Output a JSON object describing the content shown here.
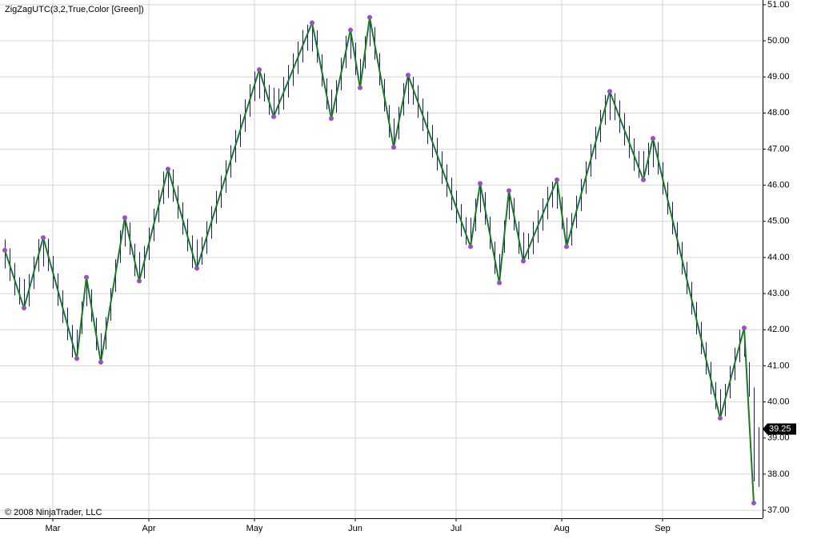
{
  "chart_data": {
    "type": "ohlc",
    "title": "ZigZagUTC(3,2,True,Color [Green])",
    "credit": "© 2008 NinjaTrader, LLC",
    "categories": [
      null,
      null,
      null,
      null,
      null,
      null,
      null,
      null,
      null,
      null,
      "Mar",
      null,
      null,
      null,
      null,
      null,
      null,
      null,
      null,
      null,
      null,
      null,
      null,
      null,
      null,
      null,
      null,
      null,
      null,
      null,
      "Apr",
      null,
      null,
      null,
      null,
      null,
      null,
      null,
      null,
      null,
      null,
      null,
      null,
      null,
      null,
      null,
      null,
      null,
      null,
      null,
      null,
      null,
      "May",
      null,
      null,
      null,
      null,
      null,
      null,
      null,
      null,
      null,
      null,
      null,
      null,
      null,
      null,
      null,
      null,
      null,
      null,
      null,
      null,
      "Jun",
      null,
      null,
      null,
      null,
      null,
      null,
      null,
      null,
      null,
      null,
      null,
      null,
      null,
      null,
      null,
      null,
      null,
      null,
      null,
      null,
      "Jul",
      null,
      null,
      null,
      null,
      null,
      null,
      null,
      null,
      null,
      null,
      null,
      null,
      null,
      null,
      null,
      null,
      null,
      null,
      null,
      null,
      null,
      "Aug",
      null,
      null,
      null,
      null,
      null,
      null,
      null,
      null,
      null,
      null,
      null,
      null,
      null,
      null,
      null,
      null,
      null,
      null,
      null,
      null,
      "Sep",
      null,
      null,
      null,
      null,
      null,
      null,
      null,
      null,
      null,
      null,
      null,
      null,
      null,
      null,
      null,
      null,
      null,
      null,
      null,
      null
    ],
    "bars": {
      "color": "#1c1c5c",
      "high": [
        44.5,
        44.25,
        43.85,
        43.45,
        43.4,
        43.54,
        44.03,
        44.51,
        44.55,
        44.52,
        44.04,
        43.56,
        43.09,
        42.61,
        42.13,
        42.0,
        42.78,
        43.45,
        43.12,
        42.33,
        41.9,
        42.35,
        43.15,
        43.95,
        44.75,
        45.1,
        44.97,
        44.38,
        44.15,
        44.32,
        44.83,
        45.35,
        45.87,
        46.38,
        46.45,
        46.44,
        45.98,
        45.53,
        45.07,
        44.61,
        44.5,
        44.57,
        45.0,
        45.42,
        45.84,
        46.27,
        46.69,
        47.11,
        47.53,
        47.96,
        48.38,
        48.8,
        49.15,
        49.2,
        49.1,
        48.78,
        48.7,
        48.68,
        49.0,
        49.33,
        49.65,
        49.98,
        50.3,
        50.45,
        50.5,
        50.29,
        49.63,
        48.96,
        48.65,
        48.91,
        49.53,
        50.14,
        50.3,
        49.95,
        49.5,
        50.13,
        50.65,
        50.38,
        49.66,
        48.94,
        48.22,
        47.85,
        48.17,
        48.83,
        49.05,
        49.0,
        48.77,
        48.4,
        48.04,
        47.67,
        47.31,
        46.94,
        46.58,
        46.21,
        45.85,
        45.48,
        45.12,
        45.1,
        45.63,
        46.05,
        45.81,
        45.13,
        44.44,
        44.1,
        45.03,
        45.85,
        45.65,
        45.0,
        44.7,
        44.67,
        44.99,
        45.31,
        45.64,
        45.96,
        46.1,
        46.15,
        45.68,
        45.1,
        45.23,
        45.71,
        46.18,
        46.66,
        47.14,
        47.62,
        48.09,
        48.5,
        48.6,
        48.55,
        48.35,
        48.0,
        47.65,
        47.3,
        46.95,
        46.95,
        47.18,
        47.3,
        47.2,
        46.64,
        46.09,
        45.54,
        44.98,
        44.43,
        43.88,
        43.32,
        42.77,
        42.22,
        41.66,
        41.11,
        40.55,
        40.35,
        40.5,
        41.0,
        41.5,
        42.0,
        42.05,
        41.1,
        40.4,
        39.3
      ],
      "low": [
        43.7,
        43.35,
        42.95,
        42.7,
        42.6,
        42.64,
        43.13,
        43.61,
        43.75,
        43.62,
        43.14,
        42.66,
        42.19,
        41.71,
        41.23,
        41.2,
        41.88,
        42.65,
        42.22,
        41.43,
        41.1,
        41.45,
        42.25,
        43.05,
        43.85,
        44.3,
        44.07,
        43.48,
        43.35,
        43.42,
        43.93,
        44.45,
        44.97,
        45.48,
        45.65,
        45.54,
        45.08,
        44.63,
        44.17,
        43.71,
        43.7,
        43.8,
        44.1,
        44.52,
        44.94,
        45.37,
        45.79,
        46.21,
        46.63,
        47.06,
        47.48,
        47.9,
        48.33,
        48.4,
        48.32,
        47.95,
        47.9,
        47.95,
        48.1,
        48.43,
        48.75,
        49.08,
        49.4,
        49.73,
        49.7,
        49.39,
        48.73,
        48.1,
        47.85,
        48.01,
        48.63,
        49.24,
        49.5,
        49.05,
        48.7,
        49.23,
        49.85,
        49.48,
        48.76,
        48.04,
        47.32,
        47.05,
        47.27,
        47.93,
        48.25,
        48.23,
        47.87,
        47.5,
        47.14,
        46.77,
        46.41,
        46.04,
        45.68,
        45.31,
        44.95,
        44.58,
        44.35,
        44.3,
        44.73,
        45.25,
        44.91,
        44.23,
        43.54,
        43.3,
        44.13,
        45.05,
        44.75,
        44.1,
        43.9,
        43.95,
        44.09,
        44.41,
        44.74,
        45.06,
        45.38,
        45.35,
        44.78,
        44.3,
        44.33,
        44.81,
        45.28,
        45.76,
        46.24,
        46.72,
        47.19,
        47.67,
        47.8,
        47.8,
        47.45,
        47.1,
        46.75,
        46.4,
        46.2,
        46.15,
        46.28,
        46.5,
        46.3,
        45.74,
        45.19,
        44.64,
        44.08,
        43.53,
        42.98,
        42.42,
        41.87,
        41.32,
        40.76,
        40.21,
        39.8,
        39.55,
        39.6,
        40.1,
        40.6,
        41.1,
        41.25,
        40.15,
        37.8,
        37.65
      ]
    },
    "zigzag": {
      "color": "#1b7a1b",
      "marker_color": "#9b4fc0",
      "values": [
        44.2,
        null,
        null,
        null,
        42.6,
        null,
        null,
        null,
        44.55,
        null,
        null,
        null,
        null,
        null,
        null,
        41.2,
        null,
        43.45,
        null,
        null,
        41.1,
        null,
        null,
        null,
        null,
        45.1,
        null,
        null,
        43.35,
        null,
        null,
        null,
        null,
        null,
        46.45,
        null,
        null,
        null,
        null,
        null,
        43.7,
        null,
        null,
        null,
        null,
        null,
        null,
        null,
        null,
        null,
        null,
        null,
        null,
        49.2,
        null,
        null,
        47.9,
        null,
        null,
        null,
        null,
        null,
        null,
        null,
        50.5,
        null,
        null,
        null,
        47.85,
        null,
        null,
        null,
        50.3,
        null,
        48.7,
        null,
        50.65,
        null,
        null,
        null,
        null,
        47.05,
        null,
        null,
        49.05,
        null,
        null,
        null,
        null,
        null,
        null,
        null,
        null,
        null,
        null,
        null,
        null,
        44.3,
        null,
        46.05,
        null,
        null,
        null,
        43.3,
        null,
        45.85,
        null,
        null,
        43.9,
        null,
        null,
        null,
        null,
        null,
        null,
        46.15,
        null,
        44.3,
        null,
        null,
        null,
        null,
        null,
        null,
        null,
        null,
        48.6,
        null,
        null,
        null,
        null,
        null,
        null,
        46.15,
        null,
        47.3,
        null,
        null,
        null,
        null,
        null,
        null,
        null,
        null,
        null,
        null,
        null,
        null,
        null,
        39.55,
        null,
        null,
        null,
        null,
        42.05,
        null,
        37.2,
        null
      ]
    },
    "last_price": {
      "value": 39.25,
      "label": "39.25"
    },
    "ylim": [
      36.78,
      51.13
    ],
    "yticks": [
      {
        "value": 37,
        "label": "37.00"
      },
      {
        "value": 38,
        "label": "38.00"
      },
      {
        "value": 39,
        "label": "39.00"
      },
      {
        "value": 40,
        "label": "40.00"
      },
      {
        "value": 41,
        "label": "41.00"
      },
      {
        "value": 42,
        "label": "42.00"
      },
      {
        "value": 43,
        "label": "43.00"
      },
      {
        "value": 44,
        "label": "44.00"
      },
      {
        "value": 45,
        "label": "45.00"
      },
      {
        "value": 46,
        "label": "46.00"
      },
      {
        "value": 47,
        "label": "47.00"
      },
      {
        "value": 48,
        "label": "48.00"
      },
      {
        "value": 49,
        "label": "49.00"
      },
      {
        "value": 50,
        "label": "50.00"
      },
      {
        "value": 51,
        "label": "51.00"
      }
    ],
    "grid": true
  }
}
